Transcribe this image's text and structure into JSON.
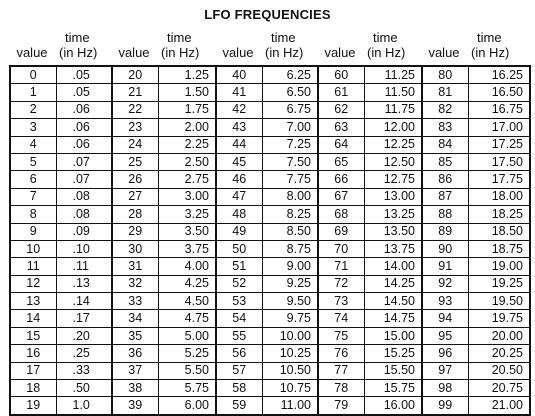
{
  "title": "LFO FREQUENCIES",
  "headers": {
    "value": "value",
    "time_line1": "time",
    "time_line2": "(in Hz)"
  },
  "rows": [
    [
      "0",
      ".05",
      "20",
      "1.25",
      "40",
      "6.25",
      "60",
      "11.25",
      "80",
      "16.25"
    ],
    [
      "1",
      ".05",
      "21",
      "1.50",
      "41",
      "6.50",
      "61",
      "11.50",
      "81",
      "16.50"
    ],
    [
      "2",
      ".06",
      "22",
      "1.75",
      "42",
      "6.75",
      "62",
      "11.75",
      "82",
      "16.75"
    ],
    [
      "3",
      ".06",
      "23",
      "2.00",
      "43",
      "7.00",
      "63",
      "12.00",
      "83",
      "17.00"
    ],
    [
      "4",
      ".06",
      "24",
      "2.25",
      "44",
      "7.25",
      "64",
      "12.25",
      "84",
      "17.25"
    ],
    [
      "5",
      ".07",
      "25",
      "2.50",
      "45",
      "7.50",
      "65",
      "12.50",
      "85",
      "17.50"
    ],
    [
      "6",
      ".07",
      "26",
      "2.75",
      "46",
      "7.75",
      "66",
      "12.75",
      "86",
      "17.75"
    ],
    [
      "7",
      ".08",
      "27",
      "3.00",
      "47",
      "8.00",
      "67",
      "13.00",
      "87",
      "18.00"
    ],
    [
      "8",
      ".08",
      "28",
      "3.25",
      "48",
      "8.25",
      "68",
      "13.25",
      "88",
      "18.25"
    ],
    [
      "9",
      ".09",
      "29",
      "3.50",
      "49",
      "8.50",
      "69",
      "13.50",
      "89",
      "18.50"
    ],
    [
      "10",
      ".10",
      "30",
      "3.75",
      "50",
      "8.75",
      "70",
      "13.75",
      "90",
      "18.75"
    ],
    [
      "11",
      ".11",
      "31",
      "4.00",
      "51",
      "9.00",
      "71",
      "14.00",
      "91",
      "19.00"
    ],
    [
      "12",
      ".13",
      "32",
      "4.25",
      "52",
      "9.25",
      "72",
      "14.25",
      "92",
      "19.25"
    ],
    [
      "13",
      ".14",
      "33",
      "4.50",
      "53",
      "9.50",
      "73",
      "14.50",
      "93",
      "19.50"
    ],
    [
      "14",
      ".17",
      "34",
      "4.75",
      "54",
      "9.75",
      "74",
      "14.75",
      "94",
      "19.75"
    ],
    [
      "15",
      ".20",
      "35",
      "5.00",
      "55",
      "10.00",
      "75",
      "15.00",
      "95",
      "20.00"
    ],
    [
      "16",
      ".25",
      "36",
      "5.25",
      "56",
      "10.25",
      "76",
      "15.25",
      "96",
      "20.25"
    ],
    [
      "17",
      ".33",
      "37",
      "5.50",
      "57",
      "10.50",
      "77",
      "15.50",
      "97",
      "20.50"
    ],
    [
      "18",
      ".50",
      "38",
      "5.75",
      "58",
      "10.75",
      "78",
      "15.75",
      "98",
      "20.75"
    ],
    [
      "19",
      "1.0",
      "39",
      "6.00",
      "59",
      "11.00",
      "79",
      "16.00",
      "99",
      "21.00"
    ]
  ]
}
